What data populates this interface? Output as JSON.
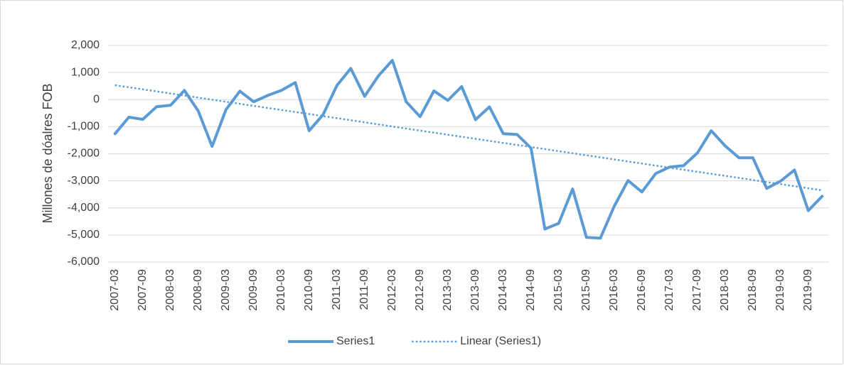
{
  "chart_data": {
    "type": "line",
    "y_axis_label": "Millones de dóalres FOB",
    "categories": [
      "2007-03",
      null,
      "2007-09",
      null,
      "2008-03",
      null,
      "2008-09",
      null,
      "2009-03",
      null,
      "2009-09",
      null,
      "2010-03",
      null,
      "2010-09",
      null,
      "2011-03",
      null,
      "2011-09",
      null,
      "2012-03",
      null,
      "2012-09",
      null,
      "2013-03",
      null,
      "2013-09",
      null,
      "2014-03",
      null,
      "2014-09",
      null,
      "2015-03",
      null,
      "2015-09",
      null,
      "2016-03",
      null,
      "2016-09",
      null,
      "2017-03",
      null,
      "2017-09",
      null,
      "2018-03",
      null,
      "2018-09",
      null,
      "2019-03",
      null,
      "2019-09",
      null
    ],
    "series": [
      {
        "name": "Series1",
        "color": "#5b9bd5",
        "style": "solid",
        "values": [
          -1260,
          -650,
          -730,
          -260,
          -210,
          340,
          -420,
          -1730,
          -370,
          310,
          -80,
          150,
          340,
          630,
          -1150,
          -560,
          520,
          1150,
          120,
          880,
          1450,
          -80,
          -630,
          320,
          -30,
          480,
          -740,
          -270,
          -1260,
          -1290,
          -1790,
          -4780,
          -4570,
          -3300,
          -5090,
          -5120,
          -3940,
          -2990,
          -3410,
          -2730,
          -2490,
          -2440,
          -1970,
          -1150,
          -1710,
          -2150,
          -2150,
          -3280,
          -3010,
          -2600,
          -4100,
          -3570
        ]
      },
      {
        "name": "Linear (Series1)",
        "color": "#5b9bd5",
        "style": "dotted",
        "values": [
          530,
          454,
          378,
          302,
          226,
          150,
          73,
          -3,
          -79,
          -155,
          -231,
          -307,
          -383,
          -459,
          -535,
          -611,
          -687,
          -763,
          -839,
          -916,
          -992,
          -1068,
          -1144,
          -1220,
          -1296,
          -1372,
          -1448,
          -1524,
          -1600,
          -1676,
          -1752,
          -1828,
          -1905,
          -1981,
          -2057,
          -2133,
          -2209,
          -2285,
          -2361,
          -2437,
          -2513,
          -2589,
          -2665,
          -2741,
          -2817,
          -2893,
          -2970,
          -3046,
          -3122,
          -3198,
          -3274,
          -3350
        ]
      }
    ],
    "ylim": [
      -6000,
      2000
    ],
    "yticks": [
      {
        "value": -6000,
        "label": "-6,000"
      },
      {
        "value": -5000,
        "label": "-5,000"
      },
      {
        "value": -4000,
        "label": "-4,000"
      },
      {
        "value": -3000,
        "label": "-3,000"
      },
      {
        "value": -2000,
        "label": "-2,000"
      },
      {
        "value": -1000,
        "label": "-1,000"
      },
      0,
      {
        "value": 1000,
        "label": "1,000"
      },
      {
        "value": 2000,
        "label": "2,000"
      }
    ],
    "grid": true,
    "legend": "bottom"
  }
}
